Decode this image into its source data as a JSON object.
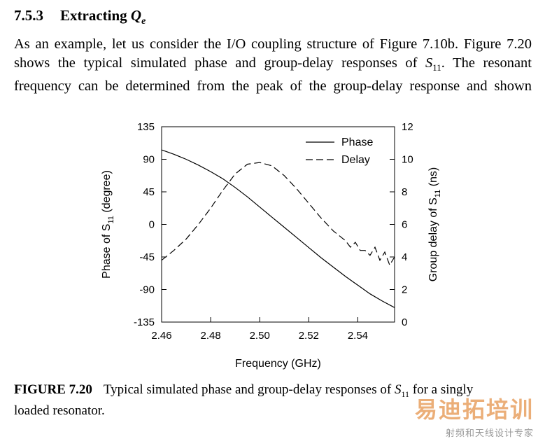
{
  "section": {
    "number": "7.5.3",
    "title_text": "Extracting ",
    "symbol": "Q",
    "symbol_sub": "e"
  },
  "paragraph": {
    "line1": "As an example, let us consider the I/O coupling structure of Figure 7.10b. Figure 7.20",
    "line2_a": "shows the typical simulated phase and group-delay responses of ",
    "line2_sym": "S",
    "line2_sub": "11",
    "line2_b": ". The resonant",
    "line3": "frequency can be determined from the peak of the group-delay response and shown"
  },
  "chart_data": {
    "type": "line",
    "xlabel": "Frequency  (GHz)",
    "ylabel_left_pre": "Phase of S",
    "ylabel_left_sub": "11",
    "ylabel_left_post": " (degree)",
    "ylabel_right_pre": "Group delay of S",
    "ylabel_right_sub": "11",
    "ylabel_right_post": " (ns)",
    "xlim": [
      2.46,
      2.555
    ],
    "ylim_left": [
      -135,
      135
    ],
    "ylim_right": [
      0,
      12
    ],
    "x_ticks": [
      "2.46",
      "2.48",
      "2.50",
      "2.52",
      "2.54"
    ],
    "y_left_ticks": [
      "135",
      "90",
      "45",
      "0",
      "-45",
      "-90",
      "-135"
    ],
    "y_right_ticks": [
      "12",
      "10",
      "8",
      "6",
      "4",
      "2",
      "0"
    ],
    "grid": false,
    "legend_position": "top-right",
    "series": [
      {
        "name": "Phase",
        "axis": "left",
        "style": "solid",
        "x": [
          2.46,
          2.465,
          2.47,
          2.475,
          2.48,
          2.485,
          2.49,
          2.495,
          2.5,
          2.505,
          2.51,
          2.515,
          2.52,
          2.525,
          2.53,
          2.535,
          2.54,
          2.545,
          2.55,
          2.555
        ],
        "y": [
          103,
          97,
          90,
          82,
          73,
          63,
          51,
          38,
          24,
          10,
          -4,
          -18,
          -32,
          -46,
          -59,
          -72,
          -84,
          -96,
          -106,
          -115
        ]
      },
      {
        "name": "Delay",
        "axis": "right",
        "style": "dashed",
        "x": [
          2.46,
          2.465,
          2.47,
          2.475,
          2.48,
          2.485,
          2.49,
          2.495,
          2.5,
          2.505,
          2.51,
          2.515,
          2.52,
          2.525,
          2.53,
          2.535,
          2.537,
          2.539,
          2.541,
          2.543,
          2.545,
          2.547,
          2.549,
          2.551,
          2.553,
          2.555
        ],
        "y": [
          3.8,
          4.4,
          5.1,
          6.0,
          7.0,
          8.1,
          9.1,
          9.7,
          9.8,
          9.6,
          9.0,
          8.2,
          7.3,
          6.4,
          5.6,
          5.0,
          4.6,
          4.9,
          4.4,
          4.4,
          4.1,
          4.6,
          3.8,
          4.3,
          3.5,
          4.0
        ]
      }
    ]
  },
  "caption": {
    "label": "FIGURE  7.20",
    "text_a": "Typical simulated phase and group-delay responses of ",
    "sym": "S",
    "sub": "11",
    "text_b": " for a singly",
    "line2": "loaded resonator."
  },
  "watermark": {
    "line1": "易迪拓培训",
    "line2": "射频和天线设计专家"
  }
}
